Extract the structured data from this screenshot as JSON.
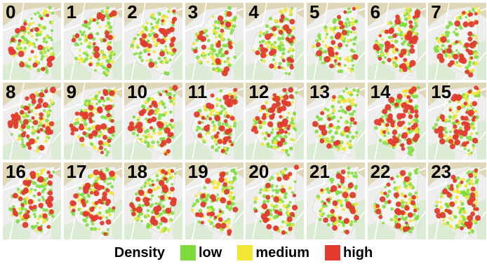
{
  "tiles": [
    "0",
    "1",
    "2",
    "3",
    "4",
    "5",
    "6",
    "7",
    "8",
    "9",
    "10",
    "11",
    "12",
    "13",
    "14",
    "15",
    "16",
    "17",
    "18",
    "19",
    "20",
    "21",
    "22",
    "23"
  ],
  "intensity": [
    0.2,
    0.15,
    0.3,
    0.2,
    0.25,
    0.3,
    0.5,
    0.55,
    0.6,
    0.65,
    0.4,
    0.65,
    0.75,
    0.2,
    0.7,
    0.7,
    0.55,
    0.65,
    0.45,
    0.35,
    0.35,
    0.4,
    0.3,
    0.3
  ],
  "legend": {
    "title": "Density",
    "items": [
      {
        "label": "low",
        "color": "#7ddc3a"
      },
      {
        "label": "medium",
        "color": "#f2e535"
      },
      {
        "label": "high",
        "color": "#e23b2e"
      }
    ]
  },
  "colors": {
    "map_bg": "#eeeeec",
    "park": "#dcebd3",
    "sand": "#dfd7b8",
    "road": "#ffffff"
  }
}
